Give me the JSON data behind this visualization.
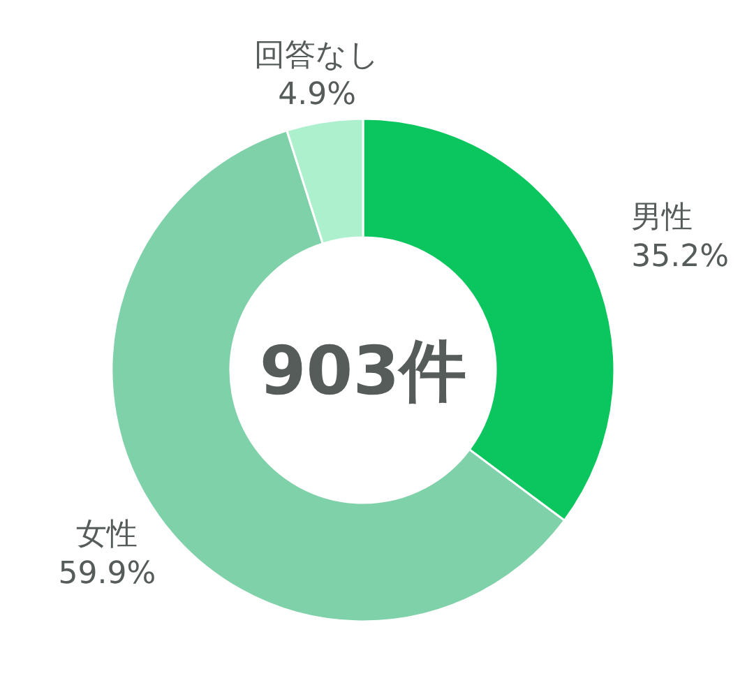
{
  "chart_data": {
    "type": "donut",
    "categories": [
      "男性",
      "女性",
      "回答なし"
    ],
    "values": [
      35.2,
      59.9,
      4.9
    ],
    "value_labels": [
      "35.2%",
      "59.9%",
      "4.9%"
    ],
    "colors": [
      "#0bc65e",
      "#7fd1a9",
      "#acf0cd"
    ],
    "annotations": [
      "903件"
    ]
  }
}
